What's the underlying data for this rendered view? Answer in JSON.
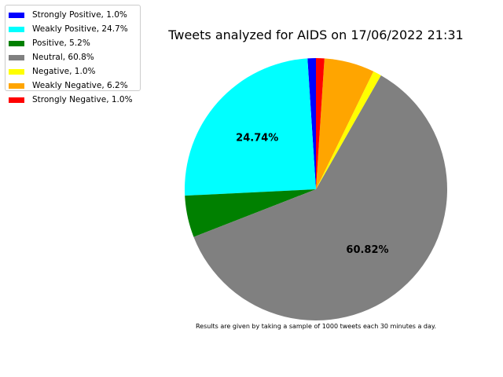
{
  "chart_data": {
    "type": "pie",
    "title": "Tweets analyzed for AIDS on 17/06/2022 21:31",
    "footnote": "Results are given by taking a sample of 1000 tweets each 30 minutes a day.",
    "slices": [
      {
        "label": "Strongly Positive",
        "value": 1.03,
        "legend": "Strongly Positive, 1.0%",
        "color": "#0000ff",
        "autopct": ""
      },
      {
        "label": "Weakly Positive",
        "value": 24.74,
        "legend": "Weakly Positive, 24.7%",
        "color": "#00ffff",
        "autopct": "24.74%"
      },
      {
        "label": "Positive",
        "value": 5.15,
        "legend": "Positive, 5.2%",
        "color": "#008000",
        "autopct": ""
      },
      {
        "label": "Neutral",
        "value": 60.82,
        "legend": "Neutral, 60.8%",
        "color": "#808080",
        "autopct": "60.82%"
      },
      {
        "label": "Negative",
        "value": 1.03,
        "legend": "Negative, 1.0%",
        "color": "#ffff00",
        "autopct": ""
      },
      {
        "label": "Weakly Negative",
        "value": 6.19,
        "legend": "Weakly Negative, 6.2%",
        "color": "#ffa500",
        "autopct": ""
      },
      {
        "label": "Strongly Negative",
        "value": 1.03,
        "legend": "Strongly Negative, 1.0%",
        "color": "#ff0000",
        "autopct": ""
      }
    ],
    "start_angle_deg": 90,
    "direction": "counterclockwise",
    "legend_position": "upper-left"
  }
}
